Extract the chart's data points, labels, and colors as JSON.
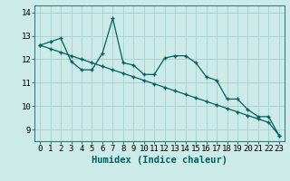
{
  "xlabel": "Humidex (Indice chaleur)",
  "background_color": "#cceae8",
  "grid_color": "#aad4d0",
  "line_color": "#006060",
  "x_values": [
    0,
    1,
    2,
    3,
    4,
    5,
    6,
    7,
    8,
    9,
    10,
    11,
    12,
    13,
    14,
    15,
    16,
    17,
    18,
    19,
    20,
    21,
    22,
    23
  ],
  "line1_y": [
    12.6,
    12.75,
    12.9,
    11.9,
    11.55,
    11.55,
    12.25,
    13.75,
    11.85,
    11.75,
    11.35,
    11.35,
    12.05,
    12.15,
    12.15,
    11.85,
    11.25,
    11.1,
    10.3,
    10.3,
    9.85,
    9.55,
    9.55,
    8.75
  ],
  "line2_y": [
    12.6,
    12.45,
    12.3,
    12.15,
    12.0,
    11.85,
    11.7,
    11.55,
    11.4,
    11.25,
    11.1,
    10.95,
    10.8,
    10.65,
    10.5,
    10.35,
    10.2,
    10.05,
    9.9,
    9.75,
    9.6,
    9.45,
    9.3,
    8.75
  ],
  "ylim": [
    8.5,
    14.3
  ],
  "xlim": [
    -0.5,
    23.5
  ],
  "yticks": [
    9,
    10,
    11,
    12,
    13,
    14
  ],
  "xtick_labels": [
    "0",
    "1",
    "2",
    "3",
    "4",
    "5",
    "6",
    "7",
    "8",
    "9",
    "10",
    "11",
    "12",
    "13",
    "14",
    "15",
    "16",
    "17",
    "18",
    "19",
    "20",
    "21",
    "22",
    "23"
  ],
  "tick_fontsize": 6.5,
  "label_fontsize": 7.5
}
